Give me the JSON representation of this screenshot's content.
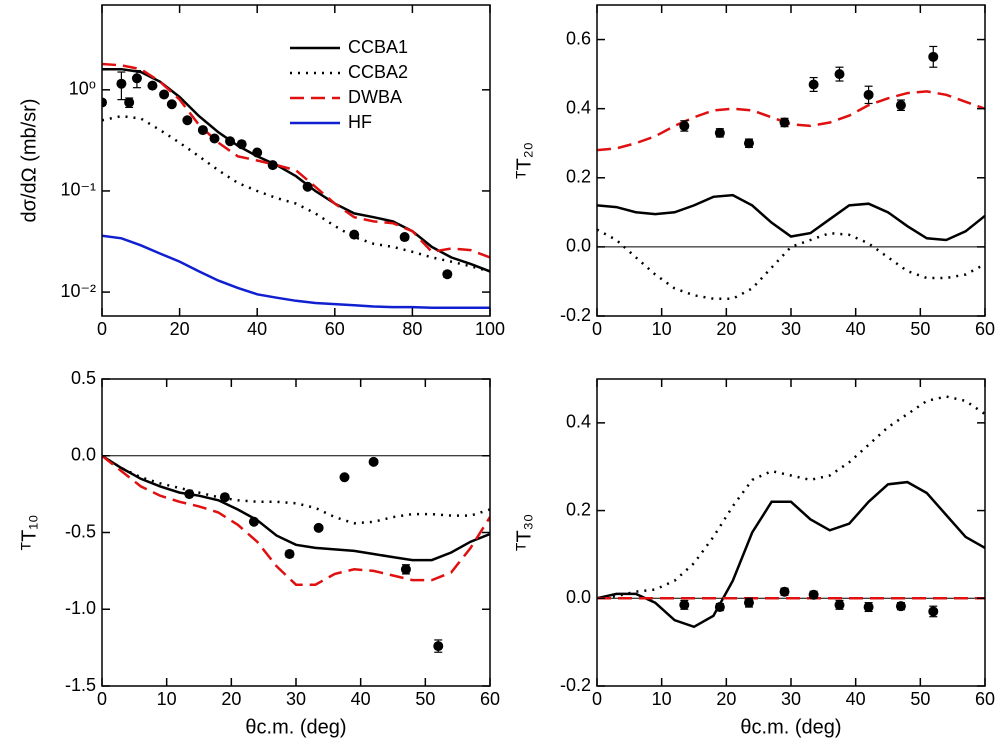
{
  "chart_data": [
    {
      "type": "line",
      "ylabel": "dσ/dΩ (mb/sr)",
      "log_y": true,
      "legend": "upper right",
      "xlim": [
        0,
        100
      ],
      "xticks": [
        0,
        20,
        40,
        60,
        80,
        100
      ],
      "ylim": [
        0.0058,
        6.9
      ],
      "yticks": [
        {
          "value": 1,
          "label": "10⁰"
        },
        {
          "value": 0.1,
          "label": "10⁻¹"
        },
        {
          "value": 0.01,
          "label": "10⁻²"
        }
      ],
      "x": [
        0,
        5,
        10,
        15,
        20,
        25,
        30,
        35,
        40,
        45,
        50,
        55,
        60,
        65,
        70,
        75,
        80,
        85,
        90,
        95,
        100
      ],
      "series": [
        {
          "name": "CCBA1",
          "color": "#000000",
          "style": "solid",
          "values": [
            1.6,
            1.6,
            1.5,
            1.2,
            0.85,
            0.55,
            0.38,
            0.28,
            0.22,
            0.18,
            0.14,
            0.1,
            0.075,
            0.06,
            0.055,
            0.05,
            0.04,
            0.028,
            0.022,
            0.019,
            0.016
          ]
        },
        {
          "name": "CCBA2",
          "color": "#000000",
          "style": "dotted",
          "values": [
            0.5,
            0.55,
            0.52,
            0.4,
            0.3,
            0.22,
            0.16,
            0.12,
            0.1,
            0.085,
            0.075,
            0.06,
            0.045,
            0.035,
            0.03,
            0.028,
            0.025,
            0.022,
            0.02,
            0.018,
            0.016
          ]
        },
        {
          "name": "DWBA",
          "color": "#e01010",
          "style": "dashed",
          "values": [
            1.8,
            1.75,
            1.6,
            1.2,
            0.8,
            0.45,
            0.3,
            0.22,
            0.2,
            0.18,
            0.16,
            0.11,
            0.075,
            0.055,
            0.05,
            0.048,
            0.04,
            0.025,
            0.027,
            0.026,
            0.022
          ]
        },
        {
          "name": "HF",
          "color": "#1020d0",
          "style": "solid",
          "values": [
            0.036,
            0.034,
            0.029,
            0.024,
            0.02,
            0.016,
            0.013,
            0.011,
            0.0095,
            0.0088,
            0.0082,
            0.0078,
            0.0076,
            0.0074,
            0.0072,
            0.0071,
            0.0071,
            0.007,
            0.007,
            0.007,
            0.007
          ]
        }
      ],
      "points": {
        "color": "#000000",
        "x": [
          0,
          5,
          7,
          9,
          13,
          16,
          18,
          22,
          26,
          29,
          33,
          36,
          40,
          44,
          53,
          65,
          78,
          89
        ],
        "values": [
          0.75,
          1.15,
          0.75,
          1.3,
          1.1,
          0.9,
          0.72,
          0.5,
          0.4,
          0.33,
          0.31,
          0.29,
          0.24,
          0.18,
          0.11,
          0.037,
          0.035,
          0.015
        ],
        "errors": [
          0.05,
          0.35,
          0.08,
          0.25,
          0.05,
          0.04,
          0.03,
          0.02,
          0.02,
          0.01,
          0.01,
          0.01,
          0.01,
          0.01,
          0.005,
          0.002,
          0.002,
          0.001
        ]
      }
    },
    {
      "type": "line",
      "ylabel": "ᵀT₂₀",
      "hline": 0,
      "xlim": [
        0,
        60
      ],
      "xticks": [
        0,
        10,
        20,
        30,
        40,
        50,
        60
      ],
      "ylim": [
        -0.2,
        0.7
      ],
      "yticks": [
        -0.2,
        {
          "value": 0,
          "label": "0.0"
        },
        0.2,
        0.4,
        0.6
      ],
      "x": [
        0,
        3,
        6,
        9,
        12,
        15,
        18,
        21,
        24,
        27,
        30,
        33,
        36,
        39,
        42,
        45,
        48,
        51,
        54,
        57,
        60
      ],
      "series": [
        {
          "color": "#000000",
          "style": "solid",
          "values": [
            0.12,
            0.115,
            0.1,
            0.095,
            0.1,
            0.12,
            0.145,
            0.15,
            0.12,
            0.07,
            0.03,
            0.04,
            0.08,
            0.12,
            0.125,
            0.1,
            0.06,
            0.025,
            0.02,
            0.045,
            0.09
          ]
        },
        {
          "color": "#000000",
          "style": "dotted",
          "values": [
            0.05,
            0.02,
            -0.03,
            -0.08,
            -0.12,
            -0.14,
            -0.15,
            -0.15,
            -0.12,
            -0.06,
            0,
            0.02,
            0.04,
            0.035,
            0.01,
            -0.03,
            -0.07,
            -0.09,
            -0.09,
            -0.08,
            -0.05
          ]
        },
        {
          "color": "#e01010",
          "style": "dashed",
          "values": [
            0.28,
            0.285,
            0.3,
            0.32,
            0.35,
            0.375,
            0.395,
            0.4,
            0.395,
            0.375,
            0.355,
            0.35,
            0.36,
            0.38,
            0.41,
            0.43,
            0.445,
            0.45,
            0.44,
            0.42,
            0.4
          ]
        }
      ],
      "points": {
        "color": "#000000",
        "x": [
          13.5,
          19,
          23.5,
          29,
          33.5,
          37.5,
          42,
          47,
          52
        ],
        "values": [
          0.35,
          0.33,
          0.3,
          0.36,
          0.47,
          0.5,
          0.44,
          0.41,
          0.55
        ],
        "errors": [
          0.015,
          0.012,
          0.012,
          0.012,
          0.02,
          0.02,
          0.025,
          0.015,
          0.03
        ]
      }
    },
    {
      "type": "line",
      "ylabel": "ᵀT₁₀",
      "xlabel": "θc.m. (deg)",
      "hline": 0,
      "xlim": [
        0,
        60
      ],
      "xticks": [
        0,
        10,
        20,
        30,
        40,
        50,
        60
      ],
      "ylim": [
        -1.5,
        0.5
      ],
      "yticks": [
        -1.5,
        {
          "value": -1,
          "label": "-1.0"
        },
        -0.5,
        {
          "value": 0,
          "label": "0.0"
        },
        0.5
      ],
      "x": [
        0,
        3,
        6,
        9,
        12,
        15,
        18,
        21,
        24,
        27,
        30,
        33,
        36,
        39,
        42,
        45,
        48,
        51,
        54,
        57,
        60
      ],
      "series": [
        {
          "color": "#000000",
          "style": "solid",
          "values": [
            0,
            -0.08,
            -0.15,
            -0.2,
            -0.24,
            -0.26,
            -0.29,
            -0.35,
            -0.42,
            -0.52,
            -0.58,
            -0.6,
            -0.61,
            -0.62,
            -0.64,
            -0.66,
            -0.68,
            -0.68,
            -0.63,
            -0.56,
            -0.51
          ]
        },
        {
          "color": "#000000",
          "style": "dotted",
          "values": [
            0,
            -0.08,
            -0.14,
            -0.18,
            -0.21,
            -0.24,
            -0.27,
            -0.29,
            -0.3,
            -0.3,
            -0.31,
            -0.34,
            -0.4,
            -0.44,
            -0.43,
            -0.4,
            -0.38,
            -0.38,
            -0.39,
            -0.39,
            -0.35
          ]
        },
        {
          "color": "#e01010",
          "style": "dashed",
          "values": [
            0,
            -0.1,
            -0.2,
            -0.26,
            -0.3,
            -0.33,
            -0.37,
            -0.45,
            -0.56,
            -0.72,
            -0.84,
            -0.84,
            -0.77,
            -0.74,
            -0.75,
            -0.78,
            -0.81,
            -0.81,
            -0.76,
            -0.6,
            -0.4
          ]
        }
      ],
      "points": {
        "color": "#000000",
        "x": [
          13.5,
          19,
          23.5,
          29,
          33.5,
          37.5,
          42,
          47,
          52
        ],
        "values": [
          -0.25,
          -0.27,
          -0.43,
          -0.64,
          -0.47,
          -0.14,
          -0.04,
          -0.74,
          -1.24
        ],
        "errors": [
          0.01,
          0.01,
          0.015,
          0.02,
          0.015,
          0.01,
          0.015,
          0.03,
          0.04
        ]
      }
    },
    {
      "type": "line",
      "ylabel": "ᵀT₃₀",
      "xlabel": "θc.m. (deg)",
      "hline": 0,
      "xlim": [
        0,
        60
      ],
      "xticks": [
        0,
        10,
        20,
        30,
        40,
        50,
        60
      ],
      "ylim": [
        -0.2,
        0.5
      ],
      "yticks": [
        -0.2,
        {
          "value": 0,
          "label": "0.0"
        },
        0.2,
        0.4
      ],
      "x": [
        0,
        3,
        6,
        9,
        12,
        15,
        18,
        21,
        24,
        27,
        30,
        33,
        36,
        39,
        42,
        45,
        48,
        51,
        54,
        57,
        60
      ],
      "series": [
        {
          "color": "#000000",
          "style": "solid",
          "values": [
            0,
            0.01,
            0.01,
            -0.01,
            -0.05,
            -0.065,
            -0.04,
            0.04,
            0.15,
            0.22,
            0.22,
            0.18,
            0.155,
            0.17,
            0.22,
            0.26,
            0.265,
            0.24,
            0.19,
            0.14,
            0.115
          ]
        },
        {
          "color": "#000000",
          "style": "dotted",
          "values": [
            0,
            0.005,
            0.015,
            0.02,
            0.04,
            0.08,
            0.14,
            0.21,
            0.27,
            0.29,
            0.28,
            0.27,
            0.28,
            0.31,
            0.35,
            0.39,
            0.42,
            0.45,
            0.46,
            0.45,
            0.42
          ]
        },
        {
          "color": "#e01010",
          "style": "dashed",
          "values": [
            0,
            0,
            0,
            0,
            0,
            0,
            0,
            0,
            0,
            0,
            0,
            0,
            0,
            0,
            0,
            0,
            0,
            0,
            0,
            0,
            0
          ]
        }
      ],
      "points": {
        "color": "#000000",
        "x": [
          13.5,
          19,
          23.5,
          29,
          33.5,
          37.5,
          42,
          47,
          52
        ],
        "values": [
          -0.015,
          -0.02,
          -0.01,
          0.015,
          0.008,
          -0.015,
          -0.02,
          -0.018,
          -0.03
        ],
        "errors": [
          0.01,
          0.008,
          0.01,
          0.008,
          0.008,
          0.01,
          0.01,
          0.008,
          0.012
        ]
      }
    }
  ]
}
